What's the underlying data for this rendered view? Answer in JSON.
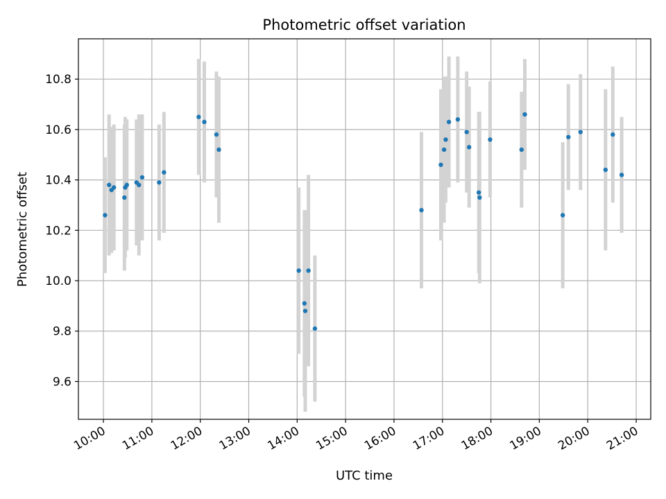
{
  "chart_data": {
    "type": "scatter",
    "title": "Photometric offset variation",
    "xlabel": "UTC time",
    "ylabel": "Photometric offset",
    "x_ticks": [
      "10:00",
      "11:00",
      "12:00",
      "13:00",
      "14:00",
      "15:00",
      "16:00",
      "17:00",
      "18:00",
      "19:00",
      "20:00",
      "21:00"
    ],
    "y_ticks": [
      "9.6",
      "9.8",
      "10.0",
      "10.2",
      "10.4",
      "10.6",
      "10.8"
    ],
    "xlim": [
      "09:29",
      "21:18"
    ],
    "ylim": [
      9.45,
      10.96
    ],
    "grid": true,
    "marker_color": "#1f77b4",
    "errorbar_color": "#d3d3d3",
    "points": [
      {
        "time": "10:02",
        "y": 10.26,
        "err": 0.23
      },
      {
        "time": "10:07",
        "y": 10.38,
        "err": 0.28
      },
      {
        "time": "10:10",
        "y": 10.36,
        "err": 0.25
      },
      {
        "time": "10:13",
        "y": 10.37,
        "err": 0.25
      },
      {
        "time": "10:26",
        "y": 10.33,
        "err": 0.29
      },
      {
        "time": "10:27",
        "y": 10.37,
        "err": 0.28
      },
      {
        "time": "10:29",
        "y": 10.38,
        "err": 0.26
      },
      {
        "time": "10:41",
        "y": 10.39,
        "err": 0.25
      },
      {
        "time": "10:44",
        "y": 10.38,
        "err": 0.28
      },
      {
        "time": "10:48",
        "y": 10.41,
        "err": 0.25
      },
      {
        "time": "11:09",
        "y": 10.39,
        "err": 0.23
      },
      {
        "time": "11:15",
        "y": 10.43,
        "err": 0.24
      },
      {
        "time": "11:58",
        "y": 10.65,
        "err": 0.23
      },
      {
        "time": "12:05",
        "y": 10.63,
        "err": 0.24
      },
      {
        "time": "12:20",
        "y": 10.58,
        "err": 0.25
      },
      {
        "time": "12:23",
        "y": 10.52,
        "err": 0.29
      },
      {
        "time": "14:02",
        "y": 10.04,
        "err": 0.33
      },
      {
        "time": "14:09",
        "y": 9.91,
        "err": 0.37
      },
      {
        "time": "14:10",
        "y": 9.88,
        "err": 0.4
      },
      {
        "time": "14:14",
        "y": 10.04,
        "err": 0.38
      },
      {
        "time": "14:22",
        "y": 9.81,
        "err": 0.29
      },
      {
        "time": "16:34",
        "y": 10.28,
        "err": 0.31
      },
      {
        "time": "16:58",
        "y": 10.46,
        "err": 0.3
      },
      {
        "time": "17:02",
        "y": 10.52,
        "err": 0.29
      },
      {
        "time": "17:04",
        "y": 10.56,
        "err": 0.25
      },
      {
        "time": "17:08",
        "y": 10.63,
        "err": 0.26
      },
      {
        "time": "17:19",
        "y": 10.64,
        "err": 0.25
      },
      {
        "time": "17:30",
        "y": 10.59,
        "err": 0.24
      },
      {
        "time": "17:33",
        "y": 10.53,
        "err": 0.24
      },
      {
        "time": "17:45",
        "y": 10.35,
        "err": 0.32
      },
      {
        "time": "17:46",
        "y": 10.33,
        "err": 0.34
      },
      {
        "time": "17:59",
        "y": 10.56,
        "err": 0.23
      },
      {
        "time": "18:38",
        "y": 10.52,
        "err": 0.23
      },
      {
        "time": "18:42",
        "y": 10.66,
        "err": 0.22
      },
      {
        "time": "19:29",
        "y": 10.26,
        "err": 0.29
      },
      {
        "time": "19:36",
        "y": 10.57,
        "err": 0.21
      },
      {
        "time": "19:51",
        "y": 10.59,
        "err": 0.23
      },
      {
        "time": "20:22",
        "y": 10.44,
        "err": 0.32
      },
      {
        "time": "20:31",
        "y": 10.58,
        "err": 0.27
      },
      {
        "time": "20:42",
        "y": 10.42,
        "err": 0.23
      }
    ]
  }
}
